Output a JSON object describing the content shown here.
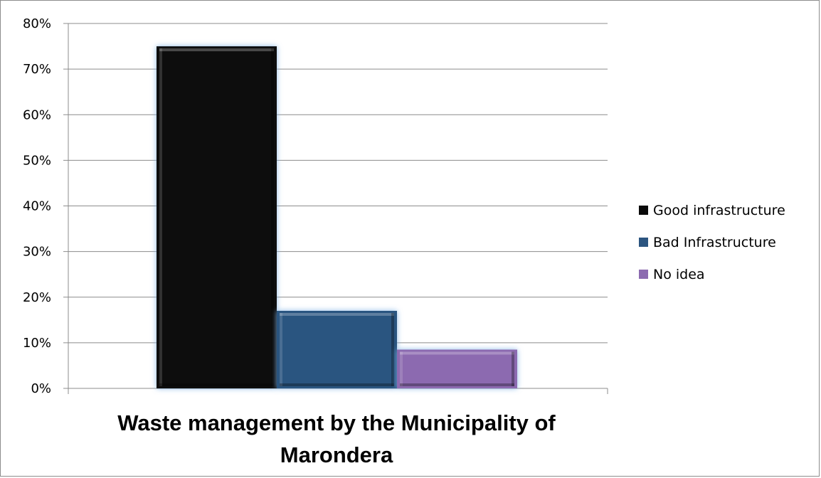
{
  "chart_data": {
    "type": "bar",
    "title": "",
    "xlabel": "Waste management by the Municipality of Marondera",
    "xlabel_lines": [
      "Waste management by the Municipality of",
      "Marondera"
    ],
    "ylabel": "",
    "ylim": [
      0,
      80
    ],
    "y_ticks": [
      "0%",
      "10%",
      "20%",
      "30%",
      "40%",
      "50%",
      "60%",
      "70%",
      "80%"
    ],
    "grid": true,
    "legend_position": "right",
    "series": [
      {
        "name": "Good infrastructure",
        "value": 75,
        "color": "#0a0a0a"
      },
      {
        "name": "Bad Infrastructure",
        "value": 17,
        "color": "#2c5580"
      },
      {
        "name": "No idea",
        "value": 8.5,
        "color": "#8c6bb0"
      }
    ]
  }
}
